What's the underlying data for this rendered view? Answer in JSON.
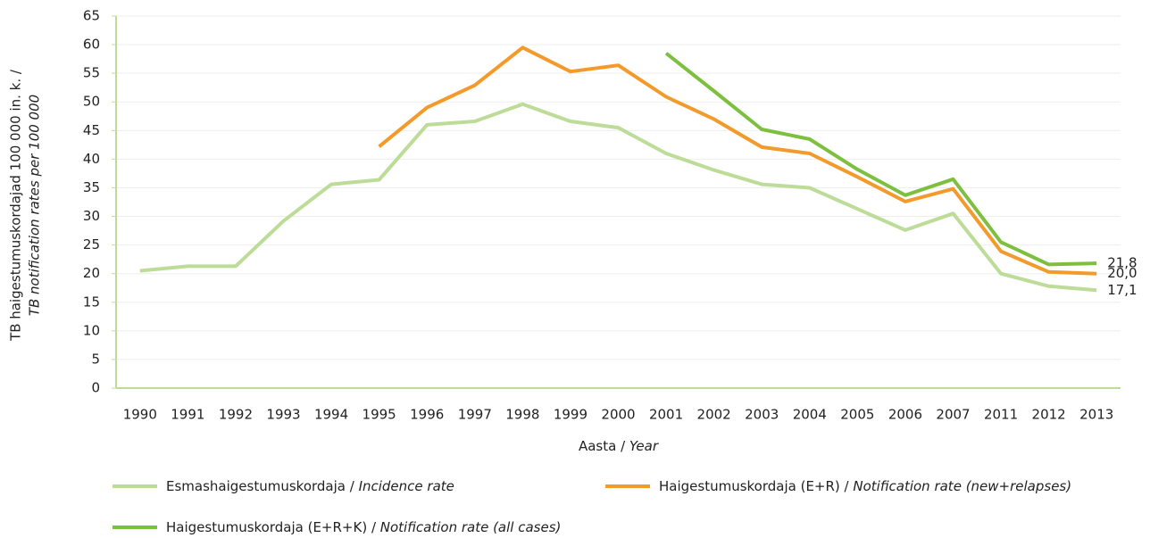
{
  "chart_data": {
    "type": "line",
    "ylabel": [
      "TB haigestumuskordajad 100 000 in. k. /",
      "TB notification rates per 100 000"
    ],
    "xlabel": "Aasta / Year",
    "categories": [
      "1990",
      "1991",
      "1992",
      "1993",
      "1994",
      "1995",
      "1996",
      "1997",
      "1998",
      "1999",
      "2000",
      "2001",
      "2002",
      "2003",
      "2004",
      "2005",
      "2006",
      "2007",
      "2011",
      "2012",
      "2013"
    ],
    "series": [
      {
        "name": "Esmashaigestumuskordaja / Incidence rate",
        "color": "#bcdc98",
        "values": [
          20.5,
          21.3,
          21.3,
          29.2,
          35.6,
          36.4,
          46,
          46.6,
          49.6,
          46.6,
          45.5,
          41,
          38.1,
          35.6,
          35,
          31.3,
          27.6,
          30.5,
          20,
          17.8,
          17.1
        ],
        "value_labels": [
          null,
          null,
          null,
          null,
          null,
          null,
          null,
          null,
          null,
          null,
          null,
          null,
          null,
          null,
          null,
          null,
          null,
          null,
          null,
          null,
          "17,1"
        ]
      },
      {
        "name": "Haigestumuskordaja (E+R) / Notification rate (new+relapses)",
        "color": "#f39a2b",
        "values": [
          null,
          null,
          null,
          null,
          null,
          42.2,
          49,
          52.9,
          59.5,
          55.3,
          56.4,
          50.9,
          47,
          42.1,
          41,
          36.9,
          32.6,
          34.8,
          23.9,
          20.3,
          20.0
        ],
        "value_labels": [
          null,
          null,
          null,
          null,
          null,
          null,
          null,
          null,
          null,
          null,
          null,
          null,
          null,
          null,
          null,
          null,
          null,
          null,
          null,
          null,
          "20,0"
        ]
      },
      {
        "name": "Haigestumuskordaja (E+R+K) / Notification rate (all cases)",
        "color": "#7dbf3e",
        "values": [
          null,
          null,
          null,
          null,
          null,
          null,
          null,
          null,
          null,
          null,
          null,
          58.5,
          51.9,
          45.2,
          43.5,
          38.2,
          33.7,
          36.5,
          25.5,
          21.6,
          21.8
        ],
        "value_labels": [
          null,
          null,
          null,
          null,
          null,
          null,
          null,
          null,
          null,
          null,
          null,
          null,
          null,
          null,
          null,
          null,
          null,
          null,
          null,
          null,
          "21,8"
        ]
      }
    ],
    "ylim": [
      0,
      65
    ],
    "yticks": [
      0,
      5,
      10,
      15,
      20,
      25,
      30,
      35,
      40,
      45,
      50,
      55,
      60,
      65
    ],
    "grid": true
  }
}
